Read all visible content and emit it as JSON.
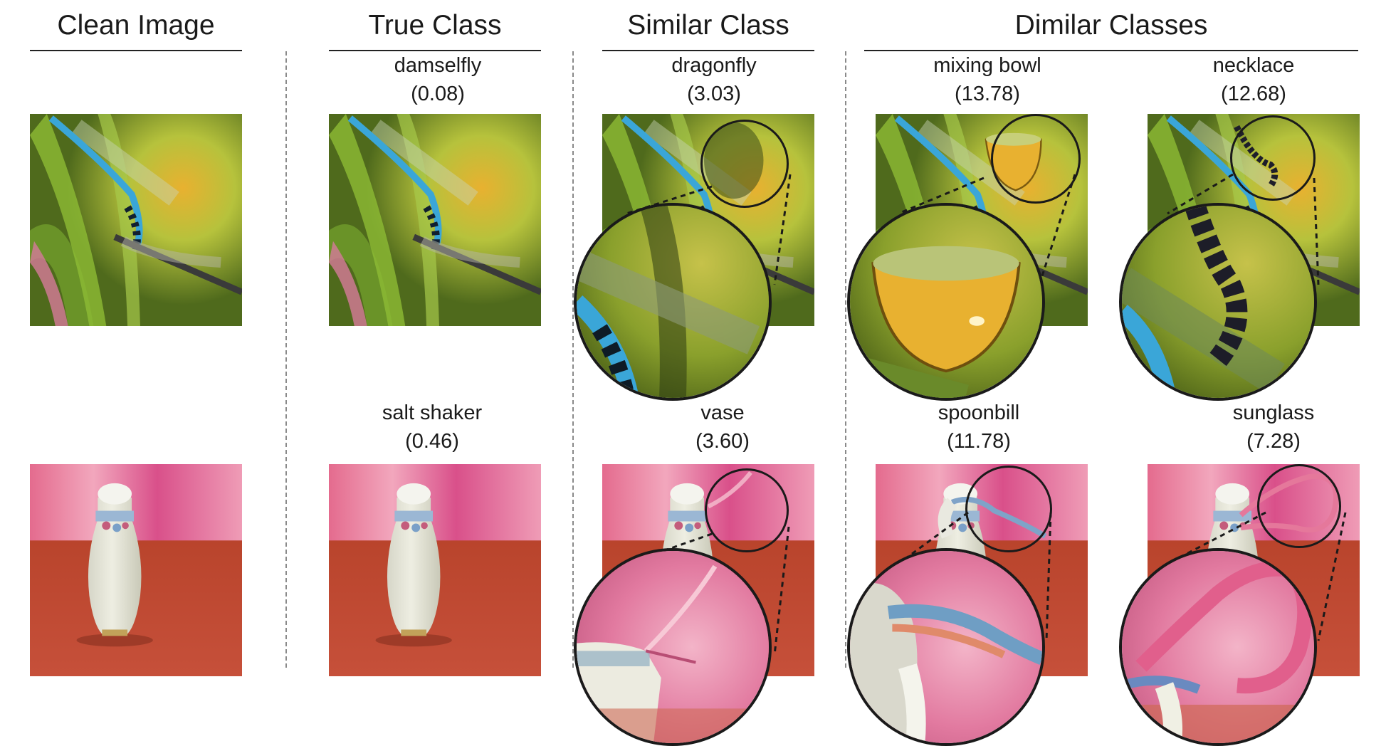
{
  "headers": {
    "clean": "Clean Image",
    "true_class": "True Class",
    "similar_class": "Similar Class",
    "dimilar_classes": "Dimilar Classes"
  },
  "rows": [
    {
      "subject": "dragonfly scene",
      "true": {
        "label": "damselfly",
        "score": "(0.08)"
      },
      "similar": {
        "label": "dragonfly",
        "score": "(3.03)"
      },
      "dissimilar": [
        {
          "label": "mixing bowl",
          "score": "(13.78)"
        },
        {
          "label": "necklace",
          "score": "(12.68)"
        }
      ]
    },
    {
      "subject": "salt shaker scene",
      "true": {
        "label": "salt shaker",
        "score": "(0.46)"
      },
      "similar": {
        "label": "vase",
        "score": "(3.60)"
      },
      "dissimilar": [
        {
          "label": "spoonbill",
          "score": "(11.78)"
        },
        {
          "label": "sunglass",
          "score": "(7.28)"
        }
      ]
    }
  ],
  "colors": {
    "foliage_dark": "#4f6a1c",
    "foliage_light": "#b6c23c",
    "accent_yellow": "#e8b130",
    "insect_blue": "#3aa6d8",
    "backdrop_pink": "#e8769d",
    "table_red": "#c6503a",
    "porcelain": "#eeeee2"
  }
}
